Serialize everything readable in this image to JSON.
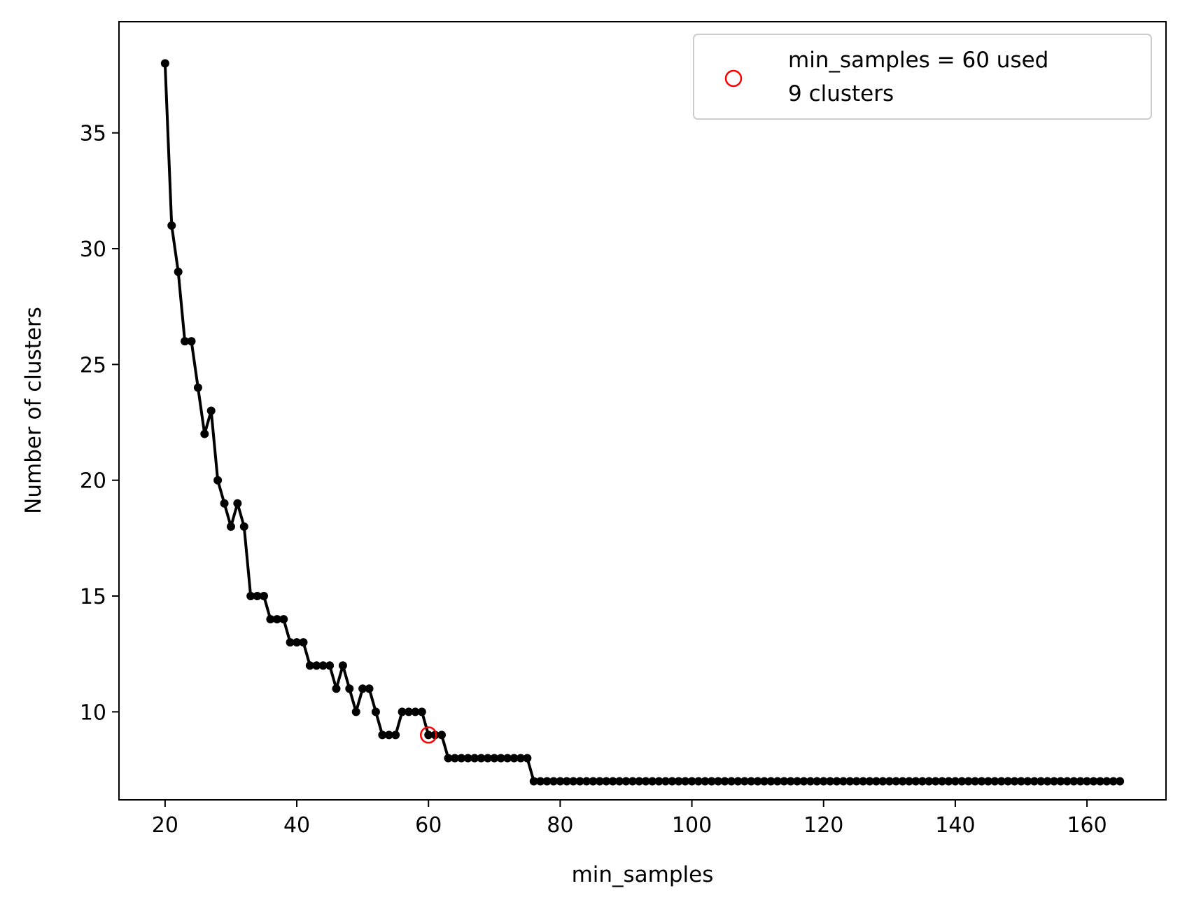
{
  "chart_data": {
    "type": "line",
    "xlabel": "min_samples",
    "ylabel": "Number of clusters",
    "xlim": [
      13,
      172
    ],
    "ylim": [
      6.2,
      39.8
    ],
    "xticks": [
      20,
      40,
      60,
      80,
      100,
      120,
      140,
      160
    ],
    "yticks": [
      10,
      15,
      20,
      25,
      30,
      35
    ],
    "grid": false,
    "legend_position": "top-right",
    "series": [
      {
        "color": "#000000",
        "marker": "dot",
        "x": [
          20,
          21,
          22,
          23,
          24,
          25,
          26,
          27,
          28,
          29,
          30,
          31,
          32,
          33,
          34,
          35,
          36,
          37,
          38,
          39,
          40,
          41,
          42,
          43,
          44,
          45,
          46,
          47,
          48,
          49,
          50,
          51,
          52,
          53,
          54,
          55,
          56,
          57,
          58,
          59,
          60,
          61,
          62,
          63,
          64,
          65,
          66,
          67,
          68,
          69,
          70,
          71,
          72,
          73,
          74,
          75,
          76,
          77,
          78,
          79,
          80,
          81,
          82,
          83,
          84,
          85,
          86,
          87,
          88,
          89,
          90,
          91,
          92,
          93,
          94,
          95,
          96,
          97,
          98,
          99,
          100,
          101,
          102,
          103,
          104,
          105,
          106,
          107,
          108,
          109,
          110,
          111,
          112,
          113,
          114,
          115,
          116,
          117,
          118,
          119,
          120,
          121,
          122,
          123,
          124,
          125,
          126,
          127,
          128,
          129,
          130,
          131,
          132,
          133,
          134,
          135,
          136,
          137,
          138,
          139,
          140,
          141,
          142,
          143,
          144,
          145,
          146,
          147,
          148,
          149,
          150,
          151,
          152,
          153,
          154,
          155,
          156,
          157,
          158,
          159,
          160,
          161,
          162,
          163,
          164,
          165
        ],
        "y": [
          38,
          31,
          29,
          26,
          26,
          24,
          22,
          23,
          20,
          19,
          18,
          19,
          18,
          15,
          15,
          15,
          14,
          14,
          14,
          13,
          13,
          13,
          12,
          12,
          12,
          12,
          11,
          12,
          11,
          10,
          11,
          11,
          10,
          9,
          9,
          9,
          10,
          10,
          10,
          10,
          9,
          9,
          9,
          8,
          8,
          8,
          8,
          8,
          8,
          8,
          8,
          8,
          8,
          8,
          8,
          8,
          7,
          7,
          7,
          7,
          7,
          7,
          7,
          7,
          7,
          7,
          7,
          7,
          7,
          7,
          7,
          7,
          7,
          7,
          7,
          7,
          7,
          7,
          7,
          7,
          7,
          7,
          7,
          7,
          7,
          7,
          7,
          7,
          7,
          7,
          7,
          7,
          7,
          7,
          7,
          7,
          7,
          7,
          7,
          7,
          7,
          7,
          7,
          7,
          7,
          7,
          7,
          7,
          7,
          7,
          7,
          7,
          7,
          7,
          7,
          7,
          7,
          7,
          7,
          7,
          7,
          7,
          7,
          7,
          7,
          7,
          7,
          7,
          7,
          7,
          7,
          7,
          7,
          7,
          7,
          7,
          7,
          7,
          7,
          7,
          7,
          7,
          7,
          7,
          7,
          7
        ]
      }
    ],
    "highlight": {
      "x": 60,
      "y": 9,
      "color": "#ff0000",
      "marker": "open-circle",
      "legend_lines": [
        "min_samples = 60 used",
        "9 clusters"
      ]
    }
  }
}
